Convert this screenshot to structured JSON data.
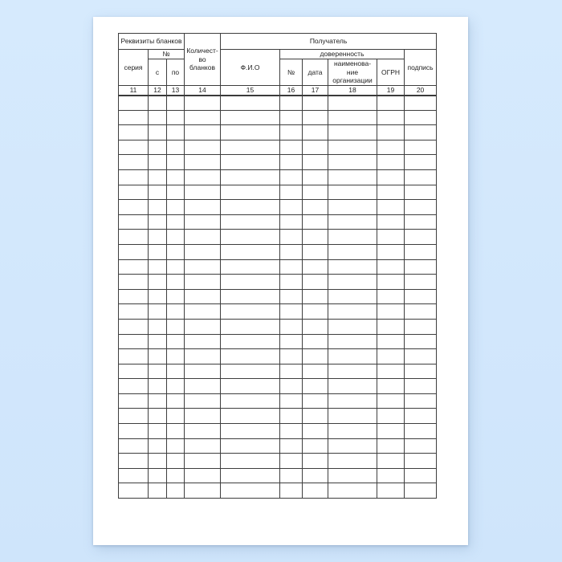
{
  "scene": {
    "background_color": "#d3e8fc",
    "sheet_color": "#ffffff",
    "border_color": "#3e3e3e",
    "text_color": "#222222"
  },
  "form_table": {
    "header": {
      "group_blank_requisites": "Реквизиты бланков",
      "group_recipient": "Получатель",
      "col_series": "серия",
      "group_number": "№",
      "col_from": "с",
      "col_to": "по",
      "col_blank_quantity": "Количест-во бланков",
      "col_full_name": "Ф.И.О",
      "group_power_of_attorney": "доверенность",
      "col_poa_number": "№",
      "col_poa_date": "дата",
      "col_organization_name": "наименова-ние организации",
      "col_ogrn": "ОГРН",
      "col_signature": "подпись"
    },
    "column_numbers": [
      "11",
      "12",
      "13",
      "14",
      "15",
      "16",
      "17",
      "18",
      "19",
      "20"
    ],
    "body": {
      "empty_rows": 27,
      "columns": 10
    }
  }
}
